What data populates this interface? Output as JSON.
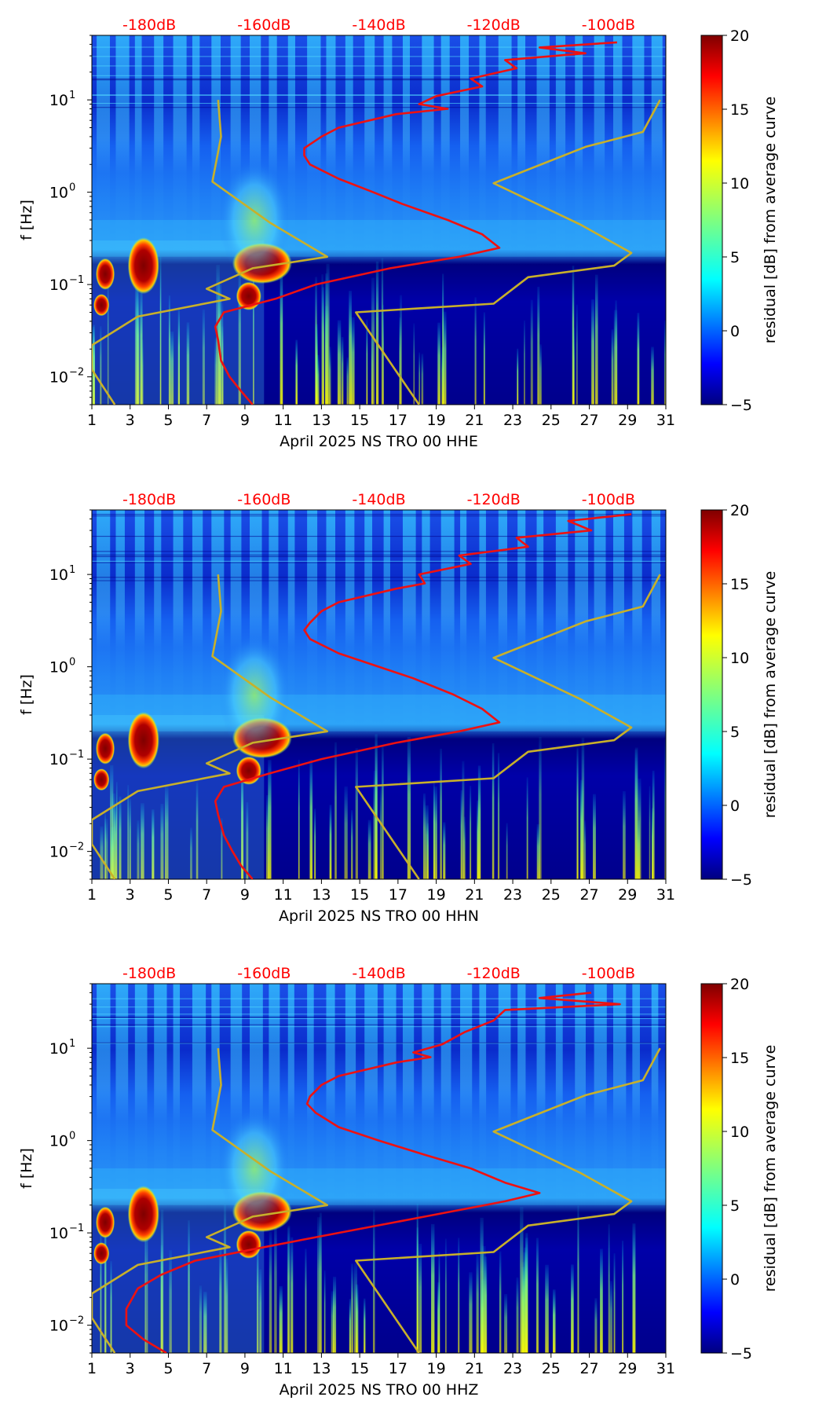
{
  "colors": {
    "noise_model": "#c8b02a",
    "average_curve": "#ee1111",
    "top_scale_text": "#ff0000"
  },
  "colormap": {
    "name": "jet",
    "stops": [
      "#00007f",
      "#0000ff",
      "#007fff",
      "#00ffff",
      "#7fff7f",
      "#ffff00",
      "#ff7f00",
      "#ff0000",
      "#7f0000"
    ]
  },
  "chart_data": [
    {
      "type": "heatmap",
      "xlabel": "April 2025 NS TRO 00 HHE",
      "ylabel": "f [Hz]",
      "x_ticks": [
        "1",
        "3",
        "5",
        "7",
        "9",
        "11",
        "13",
        "15",
        "17",
        "19",
        "21",
        "23",
        "25",
        "27",
        "29",
        "31"
      ],
      "x_range": [
        1,
        31
      ],
      "y_range": [
        0.005,
        50
      ],
      "y_ticks": [
        {
          "value": 0.01,
          "base": "10",
          "exp": "−2"
        },
        {
          "value": 0.1,
          "base": "10",
          "exp": "−1"
        },
        {
          "value": 1,
          "base": "10",
          "exp": "0"
        },
        {
          "value": 10,
          "base": "10",
          "exp": "1"
        }
      ],
      "top_labels": [
        "-180dB",
        "-160dB",
        "-140dB",
        "-120dB",
        "-100dB"
      ],
      "top_db_range": [
        -190,
        -90
      ],
      "colorbar": {
        "label": "residual [dB] from average curve",
        "range": [
          -5,
          20
        ],
        "ticks": [
          "−5",
          "0",
          "5",
          "10",
          "15",
          "20"
        ]
      },
      "noise_models": {
        "low": [
          [
            10,
            -168.0
          ],
          [
            4,
            -167.5
          ],
          [
            1.3,
            -169.0
          ],
          [
            0.47,
            -159.0
          ],
          [
            0.2,
            -149.0
          ],
          [
            0.15,
            -162.0
          ],
          [
            0.09,
            -170.0
          ],
          [
            0.07,
            -166.0
          ],
          [
            0.045,
            -182.0
          ],
          [
            0.022,
            -190.0
          ],
          [
            0.012,
            -190.0
          ],
          [
            0.005,
            -186.0
          ]
        ],
        "high": [
          [
            10,
            -91.0
          ],
          [
            4.5,
            -94.0
          ],
          [
            3.1,
            -104.0
          ],
          [
            1.25,
            -120.0
          ],
          [
            0.45,
            -105.0
          ],
          [
            0.22,
            -96.0
          ],
          [
            0.16,
            -99.0
          ],
          [
            0.12,
            -114.0
          ],
          [
            0.062,
            -120.0
          ],
          [
            0.05,
            -144.0
          ],
          [
            0.005,
            -133.0
          ]
        ]
      },
      "average_curve": [
        [
          42,
          -98.5
        ],
        [
          37,
          -112
        ],
        [
          32,
          -104
        ],
        [
          27,
          -118
        ],
        [
          22,
          -116
        ],
        [
          17,
          -124
        ],
        [
          14,
          -122
        ],
        [
          11,
          -130
        ],
        [
          9,
          -133
        ],
        [
          8,
          -128
        ],
        [
          7,
          -137
        ],
        [
          5,
          -147
        ],
        [
          4,
          -150
        ],
        [
          3,
          -153
        ],
        [
          2.5,
          -153
        ],
        [
          2,
          -152
        ],
        [
          1.4,
          -147
        ],
        [
          1,
          -141
        ],
        [
          0.75,
          -136
        ],
        [
          0.5,
          -128
        ],
        [
          0.35,
          -122
        ],
        [
          0.25,
          -119
        ],
        [
          0.2,
          -126
        ],
        [
          0.15,
          -138
        ],
        [
          0.1,
          -151
        ],
        [
          0.07,
          -158
        ],
        [
          0.05,
          -167
        ],
        [
          0.035,
          -168.5
        ],
        [
          0.025,
          -168
        ],
        [
          0.015,
          -167.5
        ],
        [
          0.01,
          -166
        ],
        [
          0.007,
          -164
        ],
        [
          0.005,
          -162
        ]
      ]
    },
    {
      "type": "heatmap",
      "xlabel": "April 2025 NS TRO 00 HHN",
      "ylabel": "f [Hz]",
      "x_ticks": [
        "1",
        "3",
        "5",
        "7",
        "9",
        "11",
        "13",
        "15",
        "17",
        "19",
        "21",
        "23",
        "25",
        "27",
        "29",
        "31"
      ],
      "x_range": [
        1,
        31
      ],
      "y_range": [
        0.005,
        50
      ],
      "y_ticks": [
        {
          "value": 0.01,
          "base": "10",
          "exp": "−2"
        },
        {
          "value": 0.1,
          "base": "10",
          "exp": "−1"
        },
        {
          "value": 1,
          "base": "10",
          "exp": "0"
        },
        {
          "value": 10,
          "base": "10",
          "exp": "1"
        }
      ],
      "top_labels": [
        "-180dB",
        "-160dB",
        "-140dB",
        "-120dB",
        "-100dB"
      ],
      "top_db_range": [
        -190,
        -90
      ],
      "colorbar": {
        "label": "residual [dB] from average curve",
        "range": [
          -5,
          20
        ],
        "ticks": [
          "−5",
          "0",
          "5",
          "10",
          "15",
          "20"
        ]
      },
      "noise_models": {
        "low": [
          [
            10,
            -168.0
          ],
          [
            4,
            -167.5
          ],
          [
            1.3,
            -169.0
          ],
          [
            0.47,
            -159.0
          ],
          [
            0.2,
            -149.0
          ],
          [
            0.15,
            -162.0
          ],
          [
            0.09,
            -170.0
          ],
          [
            0.07,
            -166.0
          ],
          [
            0.045,
            -182.0
          ],
          [
            0.022,
            -190.0
          ],
          [
            0.012,
            -190.0
          ],
          [
            0.005,
            -186.0
          ]
        ],
        "high": [
          [
            10,
            -91.0
          ],
          [
            4.5,
            -94.0
          ],
          [
            3.1,
            -104.0
          ],
          [
            1.25,
            -120.0
          ],
          [
            0.45,
            -105.0
          ],
          [
            0.22,
            -96.0
          ],
          [
            0.16,
            -99.0
          ],
          [
            0.12,
            -114.0
          ],
          [
            0.062,
            -120.0
          ],
          [
            0.05,
            -144.0
          ],
          [
            0.005,
            -133.0
          ]
        ]
      },
      "average_curve": [
        [
          45,
          -96
        ],
        [
          38,
          -107
        ],
        [
          30,
          -103
        ],
        [
          25,
          -116
        ],
        [
          20,
          -114
        ],
        [
          16,
          -126
        ],
        [
          13,
          -124
        ],
        [
          10,
          -133
        ],
        [
          8,
          -132
        ],
        [
          7,
          -137
        ],
        [
          5,
          -147
        ],
        [
          4,
          -150
        ],
        [
          3,
          -152
        ],
        [
          2.5,
          -153
        ],
        [
          2,
          -152
        ],
        [
          1.4,
          -147
        ],
        [
          1,
          -140
        ],
        [
          0.75,
          -134
        ],
        [
          0.5,
          -127
        ],
        [
          0.35,
          -122
        ],
        [
          0.25,
          -119
        ],
        [
          0.2,
          -126
        ],
        [
          0.15,
          -137
        ],
        [
          0.1,
          -150
        ],
        [
          0.07,
          -159
        ],
        [
          0.05,
          -167
        ],
        [
          0.035,
          -168.5
        ],
        [
          0.025,
          -168
        ],
        [
          0.015,
          -167
        ],
        [
          0.01,
          -165.5
        ],
        [
          0.007,
          -164
        ],
        [
          0.005,
          -162
        ]
      ]
    },
    {
      "type": "heatmap",
      "xlabel": "April 2025 NS TRO 00 HHZ",
      "ylabel": "f [Hz]",
      "x_ticks": [
        "1",
        "3",
        "5",
        "7",
        "9",
        "11",
        "13",
        "15",
        "17",
        "19",
        "21",
        "23",
        "25",
        "27",
        "29",
        "31"
      ],
      "x_range": [
        1,
        31
      ],
      "y_range": [
        0.005,
        50
      ],
      "y_ticks": [
        {
          "value": 0.01,
          "base": "10",
          "exp": "−2"
        },
        {
          "value": 0.1,
          "base": "10",
          "exp": "−1"
        },
        {
          "value": 1,
          "base": "10",
          "exp": "0"
        },
        {
          "value": 10,
          "base": "10",
          "exp": "1"
        }
      ],
      "top_labels": [
        "-180dB",
        "-160dB",
        "-140dB",
        "-120dB",
        "-100dB"
      ],
      "top_db_range": [
        -190,
        -90
      ],
      "colorbar": {
        "label": "residual [dB] from average curve",
        "range": [
          -5,
          20
        ],
        "ticks": [
          "−5",
          "0",
          "5",
          "10",
          "15",
          "20"
        ]
      },
      "noise_models": {
        "low": [
          [
            10,
            -168.0
          ],
          [
            4,
            -167.5
          ],
          [
            1.3,
            -169.0
          ],
          [
            0.47,
            -159.0
          ],
          [
            0.2,
            -149.0
          ],
          [
            0.15,
            -162.0
          ],
          [
            0.09,
            -170.0
          ],
          [
            0.07,
            -166.0
          ],
          [
            0.045,
            -182.0
          ],
          [
            0.022,
            -190.0
          ],
          [
            0.012,
            -190.0
          ],
          [
            0.005,
            -186.0
          ]
        ],
        "high": [
          [
            10,
            -91.0
          ],
          [
            4.5,
            -94.0
          ],
          [
            3.1,
            -104.0
          ],
          [
            1.25,
            -120.0
          ],
          [
            0.45,
            -105.0
          ],
          [
            0.22,
            -96.0
          ],
          [
            0.16,
            -99.0
          ],
          [
            0.12,
            -114.0
          ],
          [
            0.062,
            -120.0
          ],
          [
            0.05,
            -144.0
          ],
          [
            0.005,
            -133.0
          ]
        ]
      },
      "average_curve": [
        [
          40,
          -103
        ],
        [
          35,
          -112
        ],
        [
          30,
          -98
        ],
        [
          26,
          -118
        ],
        [
          20,
          -120
        ],
        [
          15,
          -125
        ],
        [
          11,
          -129
        ],
        [
          9,
          -134
        ],
        [
          8,
          -131
        ],
        [
          7,
          -137
        ],
        [
          5,
          -147
        ],
        [
          4,
          -150
        ],
        [
          3,
          -152
        ],
        [
          2.5,
          -152.5
        ],
        [
          2,
          -151
        ],
        [
          1.4,
          -147
        ],
        [
          1,
          -140
        ],
        [
          0.7,
          -132
        ],
        [
          0.5,
          -124
        ],
        [
          0.35,
          -118
        ],
        [
          0.27,
          -112
        ],
        [
          0.22,
          -118
        ],
        [
          0.15,
          -132
        ],
        [
          0.1,
          -147
        ],
        [
          0.07,
          -160
        ],
        [
          0.05,
          -172
        ],
        [
          0.035,
          -178
        ],
        [
          0.025,
          -182
        ],
        [
          0.015,
          -184
        ],
        [
          0.01,
          -184
        ],
        [
          0.007,
          -181
        ],
        [
          0.005,
          -177
        ]
      ]
    }
  ]
}
